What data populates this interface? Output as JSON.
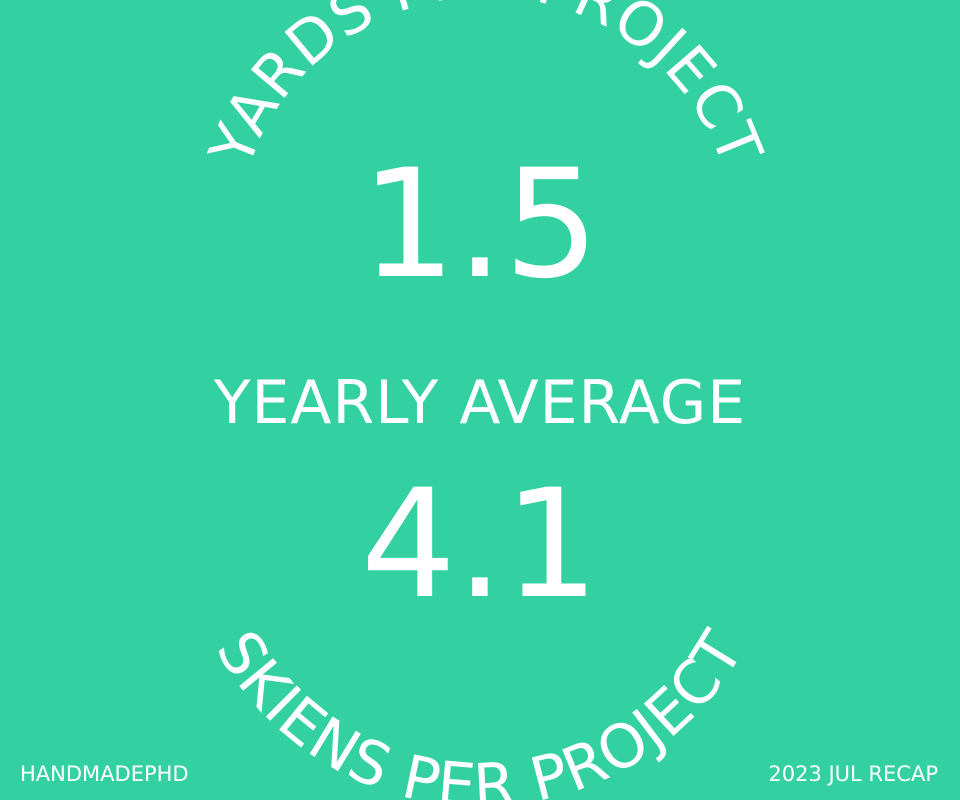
{
  "colors": {
    "background": "#33D1A1",
    "text": "#FFFFFF"
  },
  "stats": {
    "top_arc_label": "YARDS PER PROJECT",
    "top_value": "1.5",
    "middle_label": "YEARLY AVERAGE",
    "bottom_value": "4.1",
    "bottom_arc_label": "SKIENS PER PROJECT"
  },
  "footer": {
    "brand": "HANDMADEPHD",
    "recap": "2023 JUL RECAP"
  }
}
